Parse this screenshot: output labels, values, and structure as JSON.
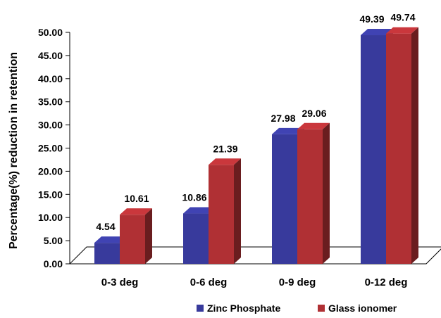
{
  "chart_data": {
    "type": "bar",
    "title": "",
    "xlabel": "",
    "ylabel": "Percentage(%) reduction in retention",
    "categories": [
      "0-3 deg",
      "0-6 deg",
      "0-9 deg",
      "0-12 deg"
    ],
    "series": [
      {
        "name": "Zinc Phosphate",
        "values": [
          4.54,
          10.86,
          27.98,
          49.39
        ],
        "color": "#383a9c"
      },
      {
        "name": "Glass ionomer",
        "values": [
          10.61,
          21.39,
          29.06,
          49.74
        ],
        "color": "#b03034"
      }
    ],
    "data_labels": [
      [
        "4.54",
        "10.86",
        "27.98",
        "49.39"
      ],
      [
        "10.61",
        "21.39",
        "29.06",
        "49.74"
      ]
    ],
    "ylim": [
      0,
      50
    ],
    "yticks": [
      "0.00",
      "5.00",
      "10.00",
      "15.00",
      "20.00",
      "25.00",
      "30.00",
      "35.00",
      "40.00",
      "45.00",
      "50.00"
    ],
    "grid": false,
    "legend": "bottom-right",
    "style": "3d-bar"
  }
}
